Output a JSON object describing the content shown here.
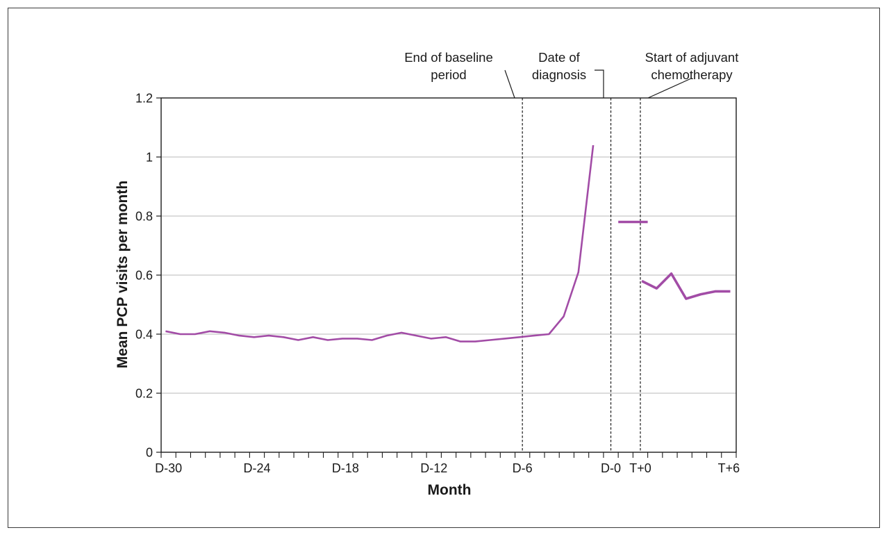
{
  "chart_data": {
    "type": "line",
    "xlabel": "Month",
    "ylabel": "Mean PCP visits per month",
    "ylim": [
      0,
      1.2
    ],
    "yticks": [
      "0",
      "0.2",
      "0.4",
      "0.6",
      "0.8",
      "1",
      "1.2"
    ],
    "xticks": [
      "D-30",
      "D-24",
      "D-18",
      "D-12",
      "D-6",
      "D-0",
      "T+0",
      "T+6"
    ],
    "grid": "horizontal",
    "colors": {
      "series": "#a24ca6",
      "grid": "#c8c8c8",
      "axis": "#1a1a1a"
    },
    "series": [
      {
        "segment": "pre-diagnosis",
        "x": [
          "D-30",
          "D-29",
          "D-28",
          "D-27",
          "D-26",
          "D-25",
          "D-24",
          "D-23",
          "D-22",
          "D-21",
          "D-20",
          "D-19",
          "D-18",
          "D-17",
          "D-16",
          "D-15",
          "D-14",
          "D-13",
          "D-12",
          "D-11",
          "D-10",
          "D-9",
          "D-8",
          "D-7",
          "D-6",
          "D-5",
          "D-4",
          "D-3",
          "D-2",
          "D-1"
        ],
        "values": [
          0.41,
          0.4,
          0.4,
          0.41,
          0.405,
          0.395,
          0.39,
          0.395,
          0.39,
          0.38,
          0.39,
          0.38,
          0.385,
          0.385,
          0.38,
          0.395,
          0.405,
          0.395,
          0.385,
          0.39,
          0.375,
          0.375,
          0.38,
          0.385,
          0.39,
          0.395,
          0.4,
          0.46,
          0.61,
          1.04
        ]
      },
      {
        "segment": "diagnosis-to-treatment",
        "x": [
          "D-0",
          "T+0"
        ],
        "values": [
          0.78,
          0.78
        ]
      },
      {
        "segment": "adjuvant-chemotherapy",
        "x": [
          "T+0",
          "T+1",
          "T+2",
          "T+3",
          "T+4",
          "T+5",
          "T+6"
        ],
        "values": [
          0.58,
          0.555,
          0.605,
          0.52,
          0.535,
          0.545,
          0.545
        ]
      }
    ],
    "annotations": [
      {
        "lines": [
          "End of baseline",
          "period"
        ],
        "at": "D-6"
      },
      {
        "lines": [
          "Date of",
          "diagnosis"
        ],
        "at": "D-0"
      },
      {
        "lines": [
          "Start of adjuvant",
          "chemotherapy"
        ],
        "at": "T+0"
      }
    ]
  }
}
